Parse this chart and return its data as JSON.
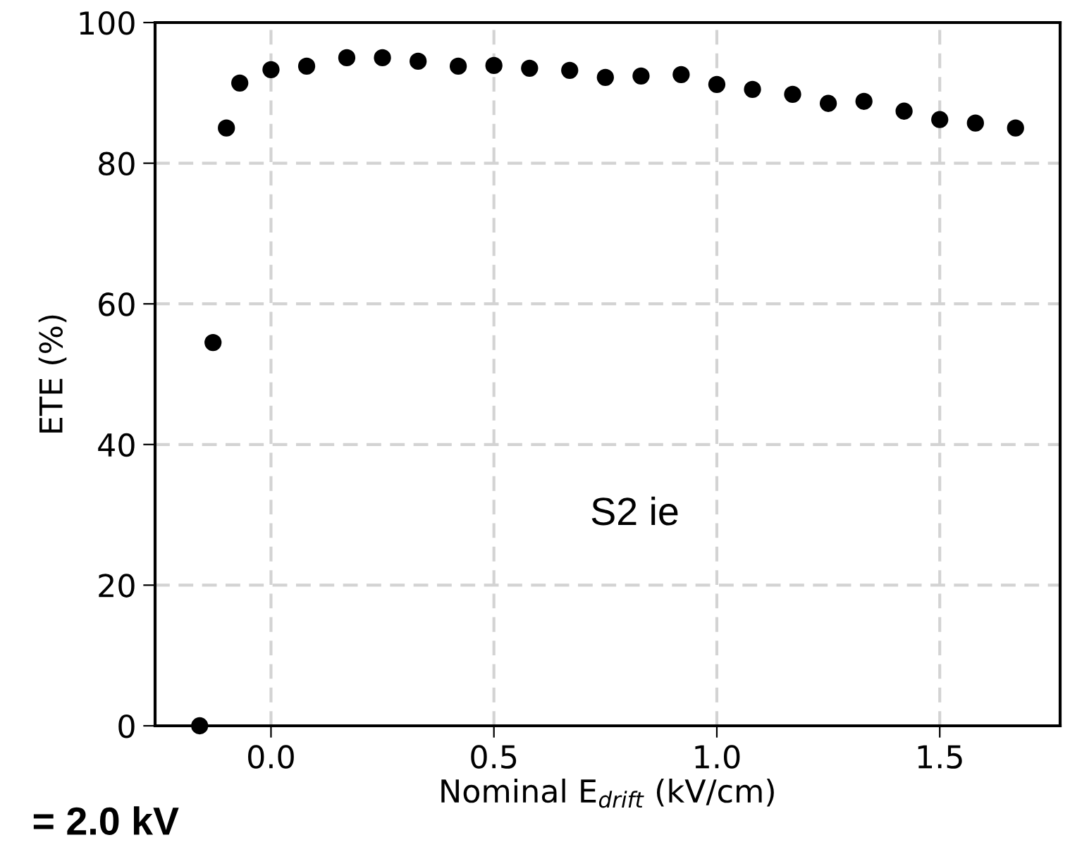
{
  "chart_data": {
    "type": "scatter",
    "xlabel": "Nominal E$_{drift}$ (kV/cm)",
    "ylabel": "ETE (%)",
    "annotations": [
      "S2 ie",
      "= 2.0 kV"
    ],
    "x": [
      -0.16,
      -0.13,
      -0.1,
      -0.07,
      0.0,
      0.08,
      0.17,
      0.25,
      0.33,
      0.42,
      0.5,
      0.58,
      0.67,
      0.75,
      0.83,
      0.92,
      1.0,
      1.08,
      1.17,
      1.25,
      1.33,
      1.42,
      1.5,
      1.58,
      1.67
    ],
    "series": [
      {
        "color": "#000000",
        "values": [
          0,
          54.5,
          85.0,
          91.4,
          93.3,
          93.8,
          95.0,
          95.0,
          94.5,
          93.8,
          93.9,
          93.5,
          93.2,
          92.2,
          92.4,
          92.6,
          91.2,
          90.5,
          89.8,
          88.5,
          88.8,
          87.4,
          86.2,
          85.7,
          85.0
        ]
      }
    ],
    "xlim": [
      -0.26,
      1.77
    ],
    "ylim": [
      0,
      100
    ],
    "xticks": [
      {
        "value": 0,
        "label": "0.0"
      },
      0.5,
      {
        "value": 1,
        "label": "1.0"
      },
      1.5
    ],
    "yticks": [
      0,
      20,
      40,
      60,
      80,
      100
    ],
    "grid": true,
    "marker": "circle"
  }
}
